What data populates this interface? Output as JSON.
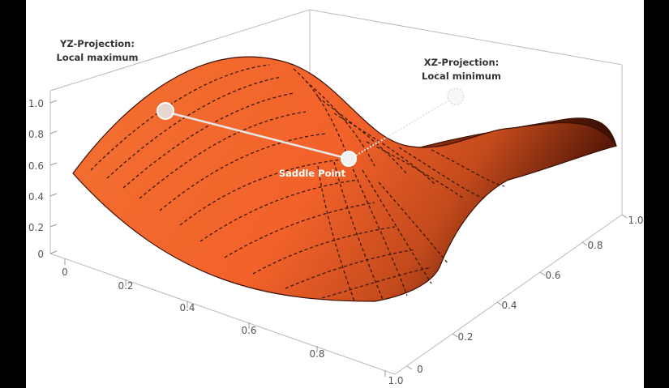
{
  "chart_data": {
    "type": "surface",
    "function": "z = 0.5 + 0.5*(x - 0.5)^2*4 - 0.5*(y - 0.5)^2*4 (saddle)",
    "x_ticks": [
      "0",
      "0.2",
      "0.4",
      "0.6",
      "0.8",
      "1.0"
    ],
    "y_ticks": [
      "0",
      "0.2",
      "0.4",
      "0.6",
      "0.8",
      "1.0"
    ],
    "z_ticks": [
      "0",
      "0.2",
      "0.4",
      "0.6",
      "0.8",
      "1.0"
    ],
    "xlim": [
      0,
      1
    ],
    "ylim": [
      0,
      1
    ],
    "zlim": [
      0,
      1
    ],
    "surface_color": "#f2622a",
    "surface_dark_color": "#5a1a08",
    "grid": false,
    "contours": "dashed",
    "points": [
      {
        "label": "Saddle Point",
        "x": 0.5,
        "y": 0.5,
        "z": 0.5
      },
      {
        "label_lines": [
          "YZ-Projection:",
          "Local maximum"
        ],
        "x": 0.0,
        "y": 0.5,
        "z": 1.0
      },
      {
        "label_lines": [
          "XZ-Projection:",
          "Local minimum"
        ],
        "x": 0.5,
        "y": 1.0,
        "z": 0.5
      }
    ]
  }
}
